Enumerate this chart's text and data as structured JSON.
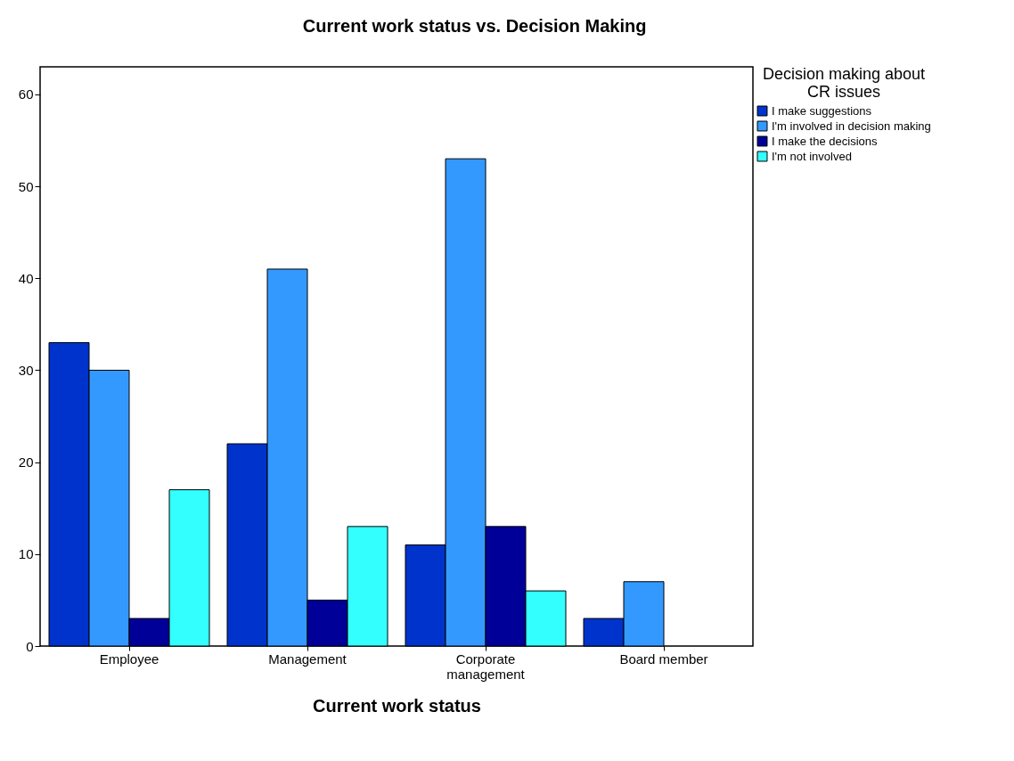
{
  "chart_data": {
    "type": "bar",
    "title": "Current work status vs. Decision Making",
    "xlabel": "Current work status",
    "legend_title": "Decision making about CR issues",
    "categories": [
      "Employee",
      "Management",
      "Corporate management",
      "Board member"
    ],
    "series": [
      {
        "name": "I make suggestions",
        "color": "#0033cc",
        "values": [
          33,
          22,
          11,
          3
        ]
      },
      {
        "name": "I'm involved in decision making",
        "color": "#3399ff",
        "values": [
          30,
          41,
          53,
          7
        ]
      },
      {
        "name": "I make the decisions",
        "color": "#000099",
        "values": [
          3,
          5,
          13,
          null
        ]
      },
      {
        "name": "I'm not involved",
        "color": "#33ffff",
        "values": [
          17,
          13,
          6,
          null
        ]
      }
    ],
    "ylim": [
      0,
      63
    ],
    "yticks": [
      0,
      10,
      20,
      30,
      40,
      50,
      60
    ],
    "grid": false,
    "legend": "top right"
  }
}
